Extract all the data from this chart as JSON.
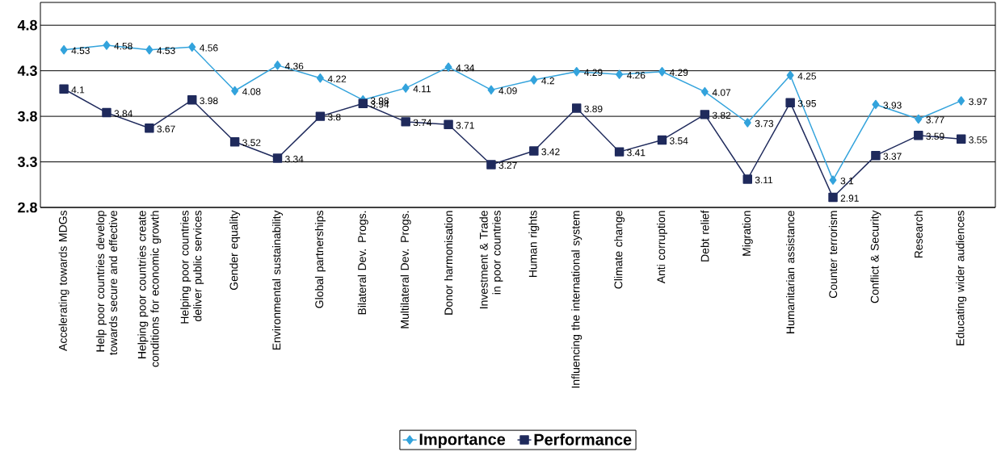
{
  "chart_data": {
    "type": "line",
    "categories": [
      "Accelerating towards MDGs",
      "Help poor countries develop towards  secure and effective",
      "Helping poor countries create conditions for economic growth",
      "Helping poor countries deliver public services",
      "Gender equality",
      "Environmental sustainability",
      "Global partnerships",
      "Bilateral Dev. Progs.",
      "Multilateral Dev. Progs.",
      "Donor harmonisation",
      "Investment & Trade in poor countries",
      "Human rights",
      "Influencing the international system",
      "Climate change",
      "Anti corruption",
      "Debt relief",
      "Migration",
      "Humanitarian assistance",
      "Counter terrorism",
      "Conflict & Security",
      "Research",
      "Educating wider audiences"
    ],
    "series": [
      {
        "name": "Importance",
        "color": "#33a3dc",
        "marker": "diamond",
        "values": [
          4.53,
          4.58,
          4.53,
          4.56,
          4.08,
          4.36,
          4.22,
          3.98,
          4.11,
          4.34,
          4.09,
          4.2,
          4.29,
          4.26,
          4.29,
          4.07,
          3.73,
          4.25,
          3.1,
          3.93,
          3.77,
          3.97
        ]
      },
      {
        "name": "Performance",
        "color": "#1f2a5c",
        "marker": "square",
        "values": [
          4.1,
          3.84,
          3.67,
          3.98,
          3.52,
          3.34,
          3.8,
          3.94,
          3.74,
          3.71,
          3.27,
          3.42,
          3.89,
          3.41,
          3.54,
          3.82,
          3.11,
          3.95,
          2.91,
          3.37,
          3.59,
          3.55
        ]
      }
    ],
    "ylim": [
      2.8,
      5.05
    ],
    "yticks": [
      2.8,
      3.3,
      3.8,
      4.3,
      4.8
    ],
    "grid": "y",
    "legend": "bottom",
    "data_labels": true
  }
}
